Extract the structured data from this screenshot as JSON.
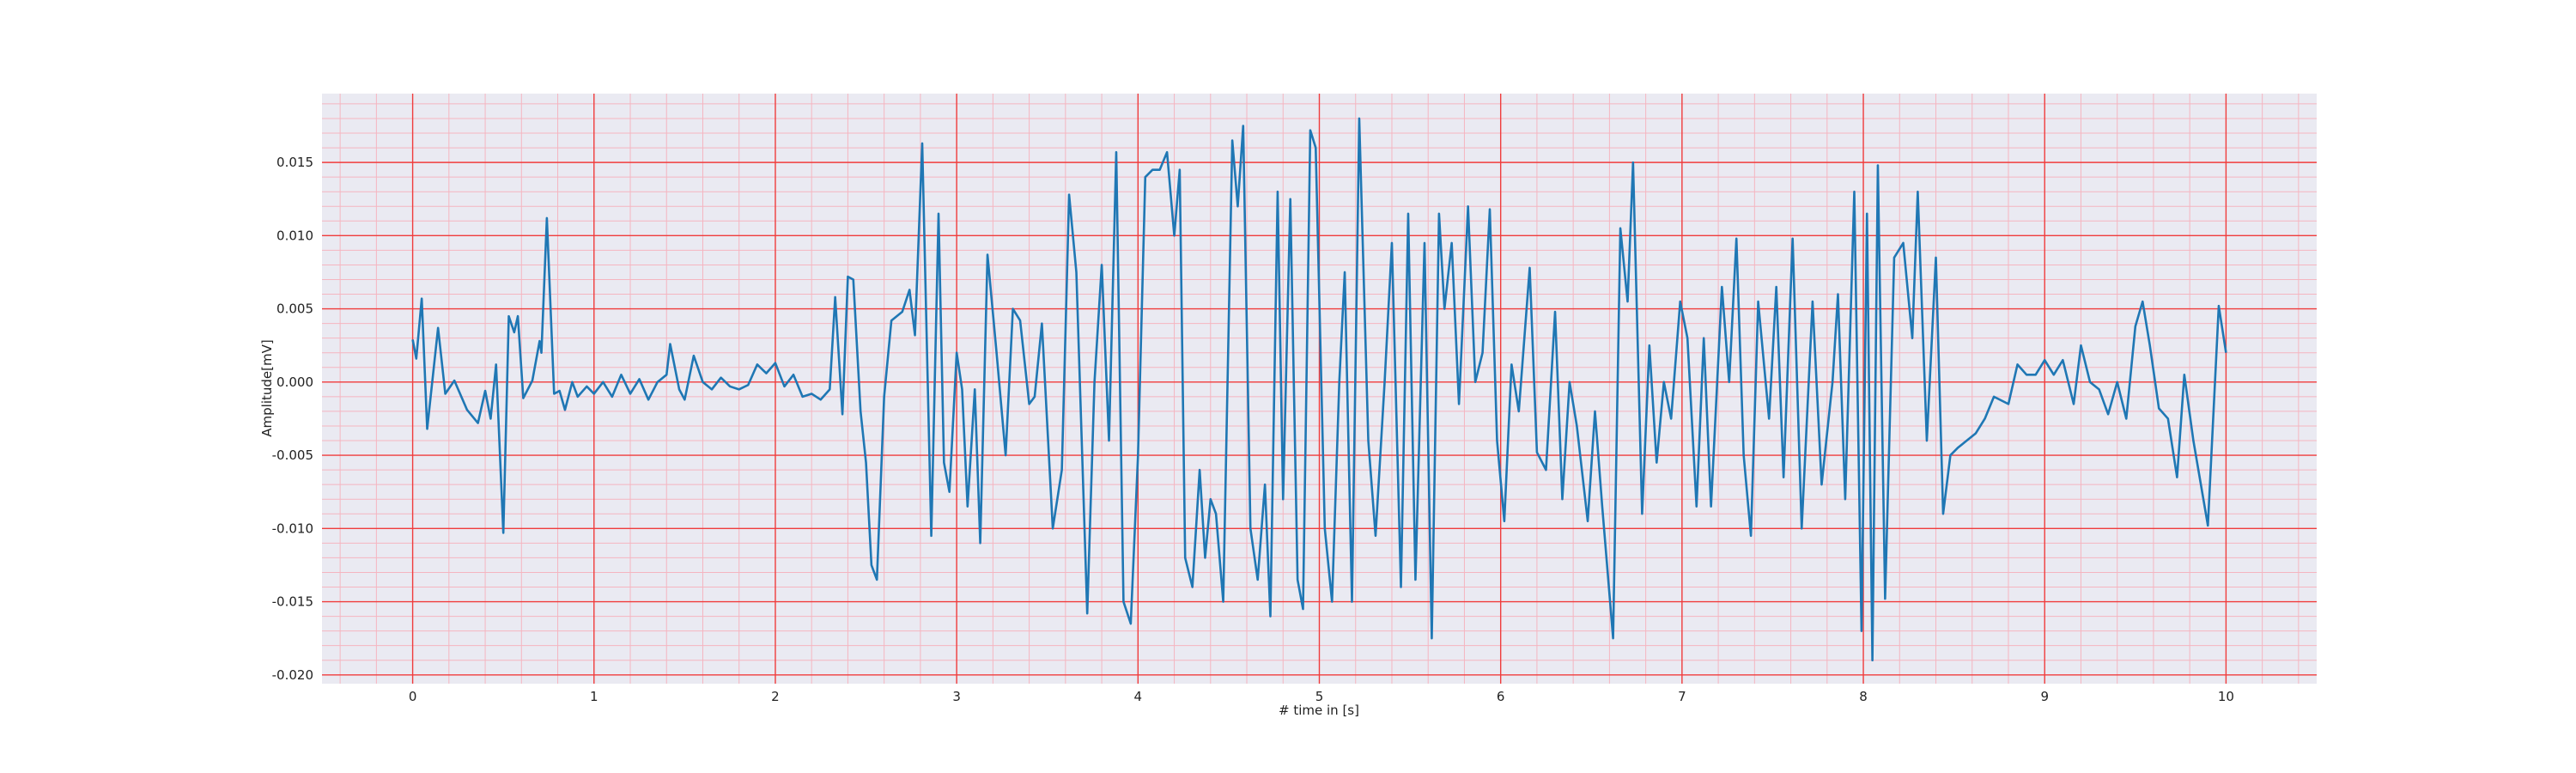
{
  "chart_data": {
    "type": "line",
    "x_label": "# time in [s]",
    "y_label": "Amplitude[mV]",
    "xlim": [
      -0.5,
      10.5
    ],
    "ylim": [
      -0.0206,
      0.0197
    ],
    "xticks": [
      0,
      1,
      2,
      3,
      4,
      5,
      6,
      7,
      8,
      9,
      10
    ],
    "yticks": [
      {
        "value": -0.02,
        "label": "-0.020"
      },
      -0.015,
      {
        "value": -0.01,
        "label": "-0.010"
      },
      -0.005,
      {
        "value": 0,
        "label": "0.000"
      },
      0.005,
      {
        "value": 0.01,
        "label": "0.010"
      },
      0.015
    ],
    "grid": true,
    "grid_color": "#f03c3c",
    "minor_grid_divisions": 5,
    "minor_grid_color": "#f5b5c0",
    "background": "#eaeaf2",
    "color": "#1f77b4",
    "x": [
      0.0,
      0.02,
      0.05,
      0.08,
      0.14,
      0.18,
      0.23,
      0.3,
      0.36,
      0.4,
      0.43,
      0.46,
      0.5,
      0.53,
      0.56,
      0.58,
      0.61,
      0.66,
      0.7,
      0.71,
      0.74,
      0.78,
      0.81,
      0.84,
      0.88,
      0.91,
      0.96,
      1.0,
      1.05,
      1.1,
      1.15,
      1.2,
      1.25,
      1.3,
      1.35,
      1.4,
      1.42,
      1.47,
      1.5,
      1.55,
      1.6,
      1.65,
      1.7,
      1.75,
      1.8,
      1.85,
      1.9,
      1.95,
      2.0,
      2.05,
      2.1,
      2.15,
      2.2,
      2.25,
      2.3,
      2.33,
      2.37,
      2.4,
      2.43,
      2.47,
      2.5,
      2.53,
      2.56,
      2.6,
      2.64,
      2.7,
      2.74,
      2.77,
      2.81,
      2.86,
      2.9,
      2.93,
      2.96,
      3.0,
      3.03,
      3.06,
      3.1,
      3.13,
      3.17,
      3.22,
      3.27,
      3.31,
      3.35,
      3.4,
      3.43,
      3.47,
      3.53,
      3.58,
      3.62,
      3.66,
      3.72,
      3.76,
      3.8,
      3.84,
      3.88,
      3.92,
      3.96,
      4.0,
      4.04,
      4.08,
      4.12,
      4.16,
      4.2,
      4.23,
      4.26,
      4.3,
      4.34,
      4.37,
      4.4,
      4.43,
      4.47,
      4.52,
      4.55,
      4.58,
      4.62,
      4.66,
      4.7,
      4.73,
      4.77,
      4.8,
      4.84,
      4.88,
      4.91,
      4.95,
      4.98,
      5.03,
      5.07,
      5.11,
      5.14,
      5.18,
      5.22,
      5.27,
      5.31,
      5.36,
      5.4,
      5.45,
      5.49,
      5.53,
      5.58,
      5.62,
      5.66,
      5.69,
      5.73,
      5.77,
      5.82,
      5.86,
      5.9,
      5.94,
      5.98,
      6.02,
      6.06,
      6.1,
      6.16,
      6.2,
      6.25,
      6.3,
      6.34,
      6.38,
      6.42,
      6.48,
      6.52,
      6.56,
      6.62,
      6.66,
      6.7,
      6.73,
      6.78,
      6.82,
      6.86,
      6.9,
      6.94,
      6.99,
      7.03,
      7.08,
      7.12,
      7.16,
      7.22,
      7.26,
      7.3,
      7.34,
      7.38,
      7.42,
      7.48,
      7.52,
      7.56,
      7.61,
      7.66,
      7.72,
      7.77,
      7.83,
      7.86,
      7.9,
      7.95,
      7.99,
      8.02,
      8.05,
      8.08,
      8.12,
      8.17,
      8.22,
      8.27,
      8.3,
      8.35,
      8.4,
      8.44,
      8.48,
      8.52,
      8.57,
      8.62,
      8.67,
      8.72,
      8.8,
      8.85,
      8.9,
      8.95,
      9.0,
      9.05,
      9.1,
      9.16,
      9.2,
      9.25,
      9.3,
      9.35,
      9.4,
      9.45,
      9.5,
      9.54,
      9.58,
      9.63,
      9.68,
      9.73,
      9.77,
      9.82,
      9.9,
      9.96,
      10.0
    ],
    "values": [
      0.0029,
      0.0016,
      0.0057,
      -0.0032,
      0.0037,
      -0.0008,
      0.0001,
      -0.0019,
      -0.0028,
      -0.0006,
      -0.0025,
      0.0012,
      -0.0103,
      0.0045,
      0.0034,
      0.0045,
      -0.0011,
      0.0001,
      0.0028,
      0.002,
      0.0112,
      -0.0008,
      -0.0006,
      -0.0019,
      0.0,
      -0.001,
      -0.0003,
      -0.0008,
      0.0,
      -0.001,
      0.0005,
      -0.0008,
      0.0002,
      -0.0012,
      0.0,
      0.0005,
      0.0026,
      -0.0005,
      -0.0012,
      0.0018,
      0.0,
      -0.0005,
      0.0003,
      -0.0003,
      -0.0005,
      -0.0002,
      0.0012,
      0.0006,
      0.0013,
      -0.0003,
      0.0005,
      -0.001,
      -0.0008,
      -0.0012,
      -0.0005,
      0.0058,
      -0.0022,
      0.0072,
      0.007,
      -0.002,
      -0.0055,
      -0.0125,
      -0.0135,
      -0.001,
      0.0042,
      0.0048,
      0.0063,
      0.0032,
      0.0163,
      -0.0105,
      0.0115,
      -0.0055,
      -0.0075,
      0.002,
      -0.0005,
      -0.0085,
      -0.0005,
      -0.011,
      0.0087,
      0.002,
      -0.005,
      0.005,
      0.0042,
      -0.0015,
      -0.001,
      0.004,
      -0.01,
      -0.006,
      0.0128,
      0.0075,
      -0.0158,
      0.0,
      0.008,
      -0.004,
      0.0157,
      -0.015,
      -0.0165,
      -0.005,
      0.014,
      0.0145,
      0.0145,
      0.0157,
      0.01,
      0.0145,
      -0.012,
      -0.014,
      -0.006,
      -0.012,
      -0.008,
      -0.009,
      -0.015,
      0.0165,
      0.012,
      0.0175,
      -0.01,
      -0.0135,
      -0.007,
      -0.016,
      0.013,
      -0.008,
      0.0125,
      -0.0135,
      -0.0155,
      0.0172,
      0.016,
      -0.01,
      -0.015,
      0.0,
      0.0075,
      -0.015,
      0.018,
      -0.004,
      -0.0105,
      0.0,
      0.0095,
      -0.014,
      0.0115,
      -0.0135,
      0.0095,
      -0.0175,
      0.0115,
      0.005,
      0.0095,
      -0.0015,
      0.012,
      0.0,
      0.002,
      0.0118,
      -0.004,
      -0.0095,
      0.0012,
      -0.002,
      0.0078,
      -0.0048,
      -0.006,
      0.0048,
      -0.008,
      0.0,
      -0.003,
      -0.0095,
      -0.002,
      -0.0085,
      -0.0175,
      0.0105,
      0.0055,
      0.015,
      -0.009,
      0.0025,
      -0.0055,
      0.0,
      -0.0025,
      0.0055,
      0.003,
      -0.0085,
      0.003,
      -0.0085,
      0.0065,
      0.0,
      0.0098,
      -0.005,
      -0.0105,
      0.0055,
      -0.0025,
      0.0065,
      -0.0065,
      0.0098,
      -0.01,
      0.0055,
      -0.007,
      0.0,
      0.006,
      -0.008,
      0.013,
      -0.017,
      0.0115,
      -0.019,
      0.0148,
      -0.0148,
      0.0085,
      0.0095,
      0.003,
      0.013,
      -0.004,
      0.0085,
      -0.009,
      -0.005,
      -0.0045,
      -0.004,
      -0.0035,
      -0.0025,
      -0.001,
      -0.0015,
      0.0012,
      0.0005,
      0.0005,
      0.0015,
      0.0005,
      0.0015,
      -0.0015,
      0.0025,
      0.0,
      -0.0005,
      -0.0022,
      0.0,
      -0.0025,
      0.0038,
      0.0055,
      0.0025,
      -0.0018,
      -0.0025,
      -0.0065,
      0.0005,
      -0.004,
      -0.0098,
      0.0052,
      0.002
    ]
  }
}
